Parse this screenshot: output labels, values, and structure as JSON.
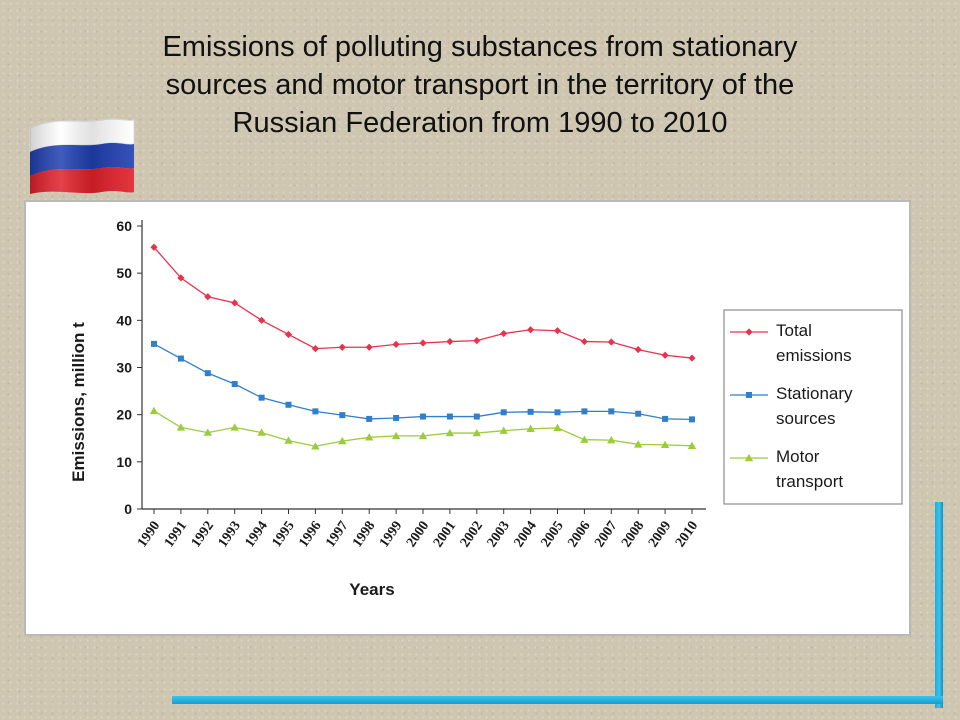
{
  "slide": {
    "title_lines": [
      "Emissions of polluting substances from stationary",
      "sources and motor transport in the territory of the",
      "Russian Federation from 1990 to 2010"
    ]
  },
  "flag": {
    "stripe_colors": [
      "#ffffff",
      "#1f3fb0",
      "#e0202a"
    ]
  },
  "chart_data": {
    "type": "line",
    "title": "",
    "xlabel": "Years",
    "ylabel": "Emissions, million t",
    "ylim": [
      0,
      60
    ],
    "yticks": [
      0,
      10,
      20,
      30,
      40,
      50,
      60
    ],
    "grid": false,
    "legend_position": "right",
    "x": [
      "1990",
      "1991",
      "1992",
      "1993",
      "1994",
      "1995",
      "1996",
      "1997",
      "1998",
      "1999",
      "2000",
      "2001",
      "2002",
      "2003",
      "2004",
      "2005",
      "2006",
      "2007",
      "2008",
      "2009",
      "2010"
    ],
    "series": [
      {
        "name": "Total emissions",
        "legend_lines": [
          "Total",
          "emissions"
        ],
        "color": "#e8334f",
        "marker": "diamond",
        "values": [
          55.5,
          49,
          45,
          43.7,
          40,
          37,
          34,
          34.3,
          34.3,
          34.9,
          35.2,
          35.5,
          35.7,
          37.2,
          38,
          37.8,
          35.5,
          35.4,
          33.8,
          32.6,
          32
        ]
      },
      {
        "name": "Stationary sources",
        "legend_lines": [
          "Stationary",
          "sources"
        ],
        "color": "#2f7fcc",
        "marker": "square",
        "values": [
          35,
          31.9,
          28.8,
          26.5,
          23.6,
          22.1,
          20.7,
          19.9,
          19.1,
          19.3,
          19.6,
          19.6,
          19.6,
          20.5,
          20.6,
          20.5,
          20.7,
          20.7,
          20.2,
          19.1,
          19
        ]
      },
      {
        "name": "Motor transport",
        "legend_lines": [
          "Motor",
          "transport"
        ],
        "color": "#9ccc3c",
        "marker": "triangle",
        "values": [
          20.8,
          17.3,
          16.2,
          17.3,
          16.2,
          14.5,
          13.3,
          14.4,
          15.2,
          15.5,
          15.5,
          16.1,
          16.1,
          16.6,
          17,
          17.2,
          14.7,
          14.6,
          13.7,
          13.6,
          13.4
        ]
      }
    ]
  }
}
